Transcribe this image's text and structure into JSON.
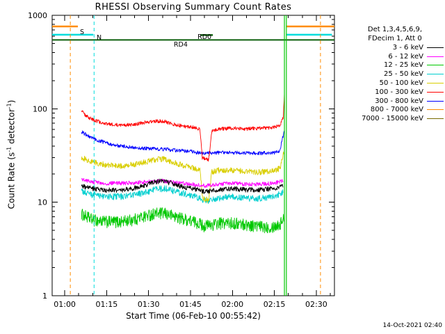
{
  "title": "RHESSI Observing Summary Count Rates",
  "x_axis": {
    "label": "Start Time (06-Feb-10 00:55:42)"
  },
  "y_axis": {
    "prefix": "Count Rate (s",
    "sup1": "-1",
    "mid": " detector",
    "sup2": "-1",
    "suffix": ")"
  },
  "legend": {
    "header1": "Det 1,3,4,5,6,9,",
    "header2": "FDecim 1, Att 0",
    "entries": [
      {
        "label": "3 - 6 keV",
        "color": "#000000"
      },
      {
        "label": "6 - 12 keV",
        "color": "#ff00ff"
      },
      {
        "label": "12 - 25 keV",
        "color": "#00c800"
      },
      {
        "label": "25 - 50 keV",
        "color": "#00cfcf"
      },
      {
        "label": "50 - 100 keV",
        "color": "#d9ce00"
      },
      {
        "label": "100 - 300 keV",
        "color": "#ff0000"
      },
      {
        "label": "300 - 800 keV",
        "color": "#0000ff"
      },
      {
        "label": "800 - 7000 keV",
        "color": "#ff8c00"
      },
      {
        "label": "7000 - 15000 keV",
        "color": "#7a6a00"
      }
    ]
  },
  "timestamp": "14-Oct-2021 02:40",
  "chart_data": {
    "type": "line",
    "x": {
      "tmin": -4.5,
      "tmax": 96.5,
      "unit": "minutes since 01:00",
      "major_ticks": [
        0,
        15,
        30,
        45,
        60,
        75,
        90
      ],
      "tick_labels": [
        "01:00",
        "01:15",
        "01:30",
        "01:45",
        "02:00",
        "02:15",
        "02:30"
      ],
      "minor_step": 5
    },
    "y": {
      "scale": "log",
      "min": 1,
      "max": 1000,
      "ticks": [
        1,
        10,
        100,
        1000
      ],
      "tick_labels": [
        "1",
        "10",
        "100",
        "1000"
      ]
    },
    "series": [
      {
        "name": "12 - 25 keV",
        "color": "#00c800",
        "noise": 0.15,
        "points": [
          [
            6,
            7.5
          ],
          [
            10,
            6.5
          ],
          [
            15,
            6.2
          ],
          [
            20,
            6.2
          ],
          [
            25,
            6.6
          ],
          [
            28,
            7
          ],
          [
            32,
            7.6
          ],
          [
            36,
            7.6
          ],
          [
            40,
            7
          ],
          [
            44,
            6.5
          ],
          [
            48,
            6
          ],
          [
            50,
            5.6
          ],
          [
            53,
            5.8
          ],
          [
            56,
            6
          ],
          [
            60,
            6
          ],
          [
            65,
            5.8
          ],
          [
            70,
            5.5
          ],
          [
            74,
            5.5
          ],
          [
            77,
            5.8
          ],
          [
            78.4,
            7
          ]
        ]
      },
      {
        "name": "25 - 50 keV",
        "color": "#00cfcf",
        "noise": 0.08,
        "points": [
          [
            6,
            13
          ],
          [
            10,
            12
          ],
          [
            15,
            11.5
          ],
          [
            20,
            11.5
          ],
          [
            25,
            12
          ],
          [
            30,
            13
          ],
          [
            33,
            14
          ],
          [
            36,
            14
          ],
          [
            40,
            13
          ],
          [
            45,
            12
          ],
          [
            50,
            10.5
          ],
          [
            52,
            10.5
          ],
          [
            55,
            11
          ],
          [
            60,
            11.5
          ],
          [
            65,
            11
          ],
          [
            70,
            11
          ],
          [
            75,
            11.5
          ],
          [
            78.2,
            13
          ]
        ]
      },
      {
        "name": "50 - 100 keV",
        "color": "#d9ce00",
        "noise": 0.07,
        "points": [
          [
            6,
            30
          ],
          [
            10,
            27
          ],
          [
            15,
            25
          ],
          [
            20,
            24.5
          ],
          [
            25,
            25.5
          ],
          [
            30,
            27.5
          ],
          [
            33,
            29
          ],
          [
            36,
            29
          ],
          [
            40,
            26
          ],
          [
            44,
            24
          ],
          [
            47,
            23
          ],
          [
            48.5,
            22
          ],
          [
            49.3,
            11
          ],
          [
            51.5,
            10.5
          ],
          [
            52.6,
            21
          ],
          [
            55,
            22
          ],
          [
            60,
            22
          ],
          [
            65,
            21.5
          ],
          [
            70,
            21
          ],
          [
            75,
            22
          ],
          [
            77,
            23
          ],
          [
            78.4,
            34
          ]
        ]
      },
      {
        "name": "6 - 12 keV",
        "color": "#ff00ff",
        "noise": 0.05,
        "points": [
          [
            6,
            17.5
          ],
          [
            10,
            16.5
          ],
          [
            15,
            16
          ],
          [
            20,
            16
          ],
          [
            25,
            16.2
          ],
          [
            30,
            16.6
          ],
          [
            35,
            17
          ],
          [
            40,
            16.2
          ],
          [
            45,
            15.6
          ],
          [
            50,
            15
          ],
          [
            55,
            15.5
          ],
          [
            60,
            16
          ],
          [
            65,
            15.6
          ],
          [
            70,
            15.6
          ],
          [
            75,
            16
          ],
          [
            78.2,
            17
          ]
        ]
      },
      {
        "name": "3 - 6 keV",
        "color": "#000000",
        "noise": 0.06,
        "points": [
          [
            6,
            15
          ],
          [
            10,
            14
          ],
          [
            15,
            13.5
          ],
          [
            20,
            13.5
          ],
          [
            25,
            14.2
          ],
          [
            28,
            15
          ],
          [
            32,
            16.5
          ],
          [
            35,
            17
          ],
          [
            38,
            16
          ],
          [
            42,
            14.6
          ],
          [
            46,
            14
          ],
          [
            50,
            13
          ],
          [
            55,
            13.5
          ],
          [
            60,
            14
          ],
          [
            65,
            13.6
          ],
          [
            70,
            13.6
          ],
          [
            75,
            14
          ],
          [
            78.2,
            15
          ]
        ]
      },
      {
        "name": "300 - 800 keV",
        "color": "#0000ff",
        "noise": 0.045,
        "points": [
          [
            6,
            57
          ],
          [
            9,
            50
          ],
          [
            12,
            46
          ],
          [
            16,
            42
          ],
          [
            20,
            40
          ],
          [
            25,
            38.5
          ],
          [
            30,
            37.5
          ],
          [
            35,
            37
          ],
          [
            40,
            36
          ],
          [
            45,
            35
          ],
          [
            48,
            34
          ],
          [
            50,
            33.5
          ],
          [
            55,
            34
          ],
          [
            60,
            34
          ],
          [
            65,
            33.5
          ],
          [
            70,
            33.5
          ],
          [
            75,
            34
          ],
          [
            77,
            36
          ],
          [
            78.5,
            58
          ]
        ]
      },
      {
        "name": "100 - 300 keV",
        "color": "#ff0000",
        "noise": 0.045,
        "points": [
          [
            6,
            95
          ],
          [
            8,
            82
          ],
          [
            12,
            73
          ],
          [
            15,
            69
          ],
          [
            20,
            67
          ],
          [
            25,
            68
          ],
          [
            28,
            71
          ],
          [
            33,
            74
          ],
          [
            36,
            73
          ],
          [
            40,
            67
          ],
          [
            44,
            64
          ],
          [
            47,
            63
          ],
          [
            48.4,
            60
          ],
          [
            49.2,
            30
          ],
          [
            51.5,
            28.5
          ],
          [
            52.6,
            57
          ],
          [
            55,
            61
          ],
          [
            60,
            62
          ],
          [
            65,
            61
          ],
          [
            70,
            62
          ],
          [
            74,
            63
          ],
          [
            77,
            66
          ],
          [
            78.2,
            80
          ],
          [
            78.6,
            150
          ]
        ]
      }
    ],
    "flags": {
      "bars": [
        {
          "name": "saa-flag-bar",
          "color": "#ff8c00",
          "value": 760,
          "width": 2.5,
          "segments": [
            [
              -4.5,
              4.7
            ],
            [
              79.3,
              96.5
            ]
          ]
        },
        {
          "name": "night-flag-bar",
          "color": "#00dcdc",
          "value": 620,
          "width": 2.5,
          "segments": [
            [
              -4.5,
              10.2
            ],
            [
              79.3,
              95.6
            ]
          ]
        },
        {
          "name": "decimation-line",
          "color": "#0d5f0d",
          "value": 545,
          "width": 2,
          "segments": [
            [
              -4.5,
              96.5
            ]
          ]
        },
        {
          "name": "rd0-segment",
          "color": "#0d5f0d",
          "value": 615,
          "width": 2.5,
          "segments": [
            [
              48.5,
              53
            ]
          ]
        }
      ],
      "vlines": [
        {
          "color": "#ff8c00",
          "t": 2.0,
          "dash": "5 4",
          "width": 1
        },
        {
          "color": "#00dcdc",
          "t": 10.5,
          "dash": "5 4",
          "width": 1
        },
        {
          "color": "#00c800",
          "t": 78.6,
          "dash": "",
          "width": 1.2
        },
        {
          "color": "#00c800",
          "t": 79.3,
          "dash": "",
          "width": 1.2
        },
        {
          "color": "#ff8c00",
          "t": 91.5,
          "dash": "5 4",
          "width": 1
        }
      ],
      "labels": [
        {
          "text": "S",
          "color": "#ff8c00",
          "t": 6.2,
          "y": 49
        },
        {
          "text": "N",
          "color": "#00cfcf",
          "t": 12.3,
          "y": 57
        },
        {
          "text": "RD4",
          "color": "#0c960c",
          "t": 41.5,
          "y": 67
        },
        {
          "text": "RD0",
          "color": "#0c960c",
          "t": 50,
          "y": 56
        }
      ]
    }
  }
}
